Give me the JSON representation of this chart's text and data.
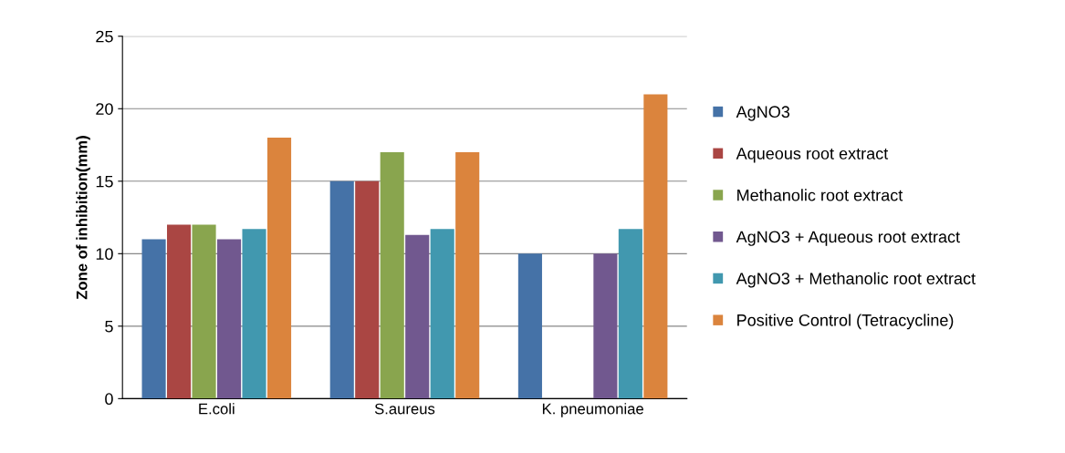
{
  "chart_data": {
    "type": "bar",
    "ylabel": "Zone of inhibition(mm)",
    "categories": [
      "E.coli",
      "S.aureus",
      "K. pneumoniae"
    ],
    "series": [
      {
        "name": "AgNO3",
        "color": "#4572a7",
        "values": [
          11,
          15,
          10
        ]
      },
      {
        "name": "Aqueous root extract",
        "color": "#aa4643",
        "values": [
          12,
          15,
          0
        ]
      },
      {
        "name": "Methanolic root extract",
        "color": "#89a54e",
        "values": [
          12,
          17,
          0
        ]
      },
      {
        "name": "AgNO3 + Aqueous root extract",
        "color": "#71588f",
        "values": [
          11,
          11.3,
          10
        ]
      },
      {
        "name": "AgNO3 + Methanolic root extract",
        "color": "#4198af",
        "values": [
          11.7,
          11.7,
          11.7
        ]
      },
      {
        "name": "Positive Control (Tetracycline)",
        "color": "#db843d",
        "values": [
          18,
          17,
          21
        ]
      }
    ],
    "ylim": [
      0,
      25
    ],
    "yticks": [
      0,
      5,
      10,
      15,
      20,
      25
    ],
    "grid": "y",
    "legend": "right"
  }
}
